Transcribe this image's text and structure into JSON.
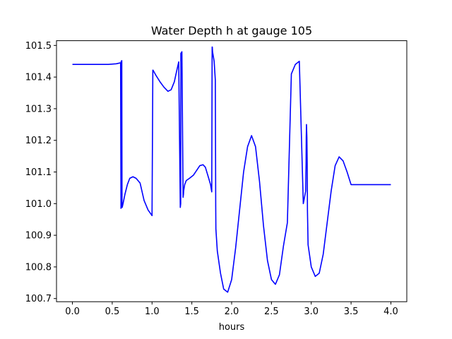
{
  "chart_data": {
    "type": "line",
    "title": "Water Depth h at gauge 105",
    "xlabel": "hours",
    "ylabel": "",
    "xlim": [
      -0.2,
      4.2
    ],
    "ylim": [
      100.69,
      101.515
    ],
    "xticks": [
      0.0,
      0.5,
      1.0,
      1.5,
      2.0,
      2.5,
      3.0,
      3.5,
      4.0
    ],
    "xtick_labels": [
      "0.0",
      "0.5",
      "1.0",
      "1.5",
      "2.0",
      "2.5",
      "3.0",
      "3.5",
      "4.0"
    ],
    "yticks": [
      100.7,
      100.8,
      100.9,
      101.0,
      101.1,
      101.2,
      101.3,
      101.4,
      101.5
    ],
    "ytick_labels": [
      "100.7",
      "100.8",
      "100.9",
      "101.0",
      "101.1",
      "101.2",
      "101.3",
      "101.4",
      "101.5"
    ],
    "grid": false,
    "line_color": "#0000ff",
    "series": [
      {
        "x": [
          0.0,
          0.3,
          0.45,
          0.55,
          0.605,
          0.61,
          0.612,
          0.615,
          0.62,
          0.623,
          0.625,
          0.627,
          0.64,
          0.66,
          0.69,
          0.72,
          0.76,
          0.8,
          0.85,
          0.9,
          0.95,
          1.0,
          1.01,
          1.012,
          1.05,
          1.1,
          1.15,
          1.2,
          1.24,
          1.28,
          1.31,
          1.335,
          1.355,
          1.36,
          1.362,
          1.375,
          1.39,
          1.395,
          1.397,
          1.41,
          1.43,
          1.47,
          1.52,
          1.56,
          1.6,
          1.64,
          1.67,
          1.7,
          1.735,
          1.75,
          1.755,
          1.757,
          1.76,
          1.78,
          1.795,
          1.8,
          1.802,
          1.82,
          1.86,
          1.9,
          1.95,
          2.0,
          2.05,
          2.1,
          2.15,
          2.2,
          2.25,
          2.3,
          2.35,
          2.4,
          2.45,
          2.5,
          2.55,
          2.6,
          2.65,
          2.7,
          2.75,
          2.8,
          2.85,
          2.9,
          2.93,
          2.935,
          2.937,
          2.94,
          2.945,
          2.95,
          2.952,
          2.96,
          3.0,
          3.05,
          3.1,
          3.15,
          3.2,
          3.25,
          3.3,
          3.35,
          3.4,
          3.45,
          3.5,
          3.55,
          3.6,
          3.65,
          3.7,
          3.75,
          3.8,
          3.85,
          3.9,
          3.95,
          4.0
        ],
        "y": [
          101.44,
          101.44,
          101.44,
          101.442,
          101.445,
          100.985,
          101.45,
          100.99,
          101.452,
          100.99,
          100.988,
          100.99,
          101.005,
          101.03,
          101.06,
          101.08,
          101.085,
          101.08,
          101.065,
          101.01,
          100.98,
          100.962,
          101.422,
          101.422,
          101.405,
          101.385,
          101.368,
          101.355,
          101.36,
          101.385,
          101.42,
          101.448,
          100.988,
          101.0,
          101.475,
          101.48,
          101.02,
          101.03,
          101.04,
          101.06,
          101.073,
          101.08,
          101.09,
          101.105,
          101.12,
          101.123,
          101.115,
          101.09,
          101.06,
          101.037,
          101.495,
          101.495,
          101.48,
          101.45,
          101.39,
          100.99,
          100.92,
          100.85,
          100.78,
          100.73,
          100.72,
          100.76,
          100.86,
          100.98,
          101.1,
          101.18,
          101.215,
          101.18,
          101.07,
          100.93,
          100.82,
          100.76,
          100.745,
          100.775,
          100.865,
          100.94,
          101.41,
          101.44,
          101.45,
          101.0,
          101.04,
          101.13,
          101.21,
          101.25,
          101.21,
          101.1,
          100.98,
          100.87,
          100.8,
          100.77,
          100.78,
          100.84,
          100.94,
          101.04,
          101.12,
          101.148,
          101.135,
          101.1,
          101.06,
          101.06,
          101.06,
          101.06,
          101.06,
          101.06,
          101.06,
          101.06,
          101.06,
          101.06,
          101.06
        ]
      }
    ]
  }
}
